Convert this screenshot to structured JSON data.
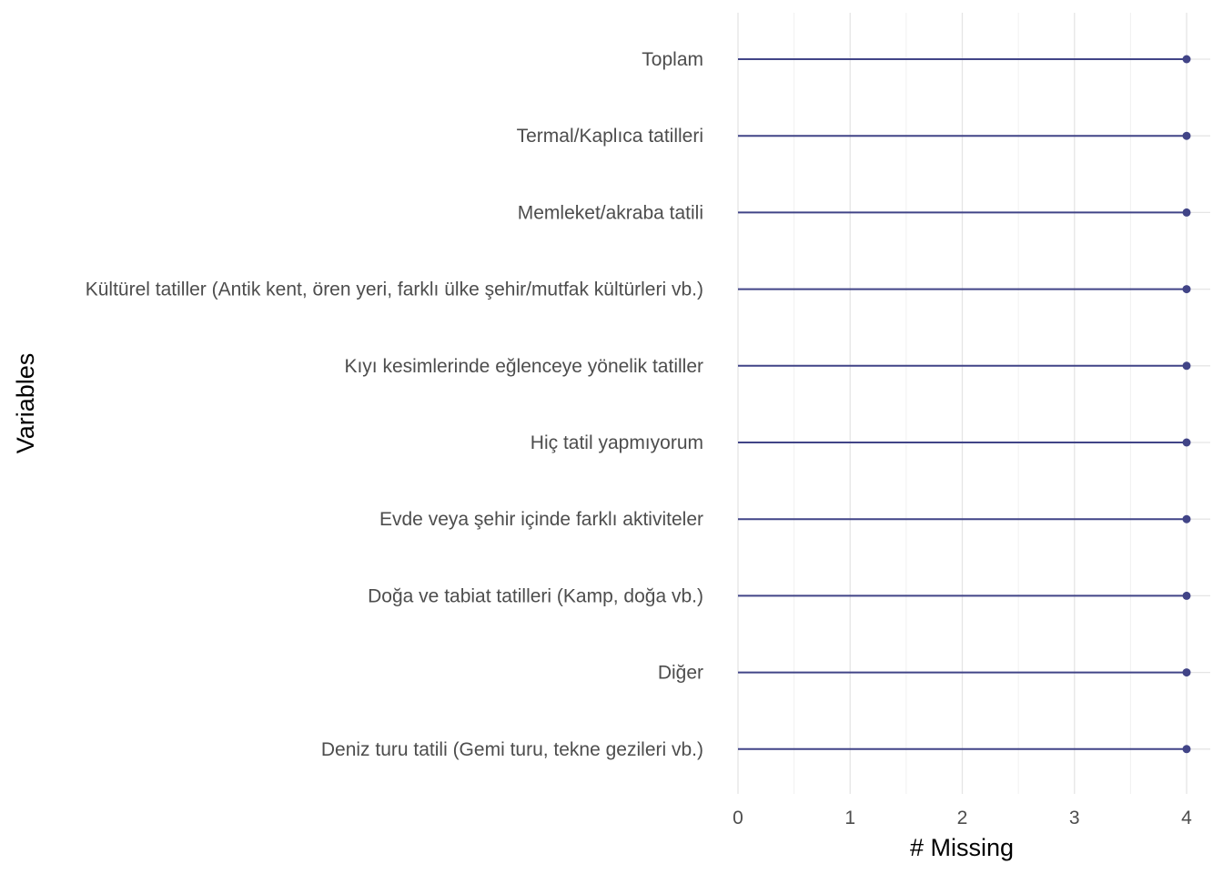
{
  "chart_data": {
    "type": "lollipop",
    "orientation": "horizontal",
    "title": "",
    "xlabel": "# Missing",
    "ylabel": "Variables",
    "xlim": [
      0,
      4
    ],
    "x_ticks": [
      "0",
      "1",
      "2",
      "3",
      "4"
    ],
    "grid": true,
    "legend": "none",
    "color": "#414487",
    "categories": [
      "Toplam",
      "Termal/Kaplıca tatilleri",
      "Memleket/akraba tatili",
      "Kültürel tatiller (Antik kent, ören yeri, farklı ülke şehir/mutfak kültürleri vb.)",
      "Kıyı kesimlerinde eğlenceye yönelik tatiller",
      "Hiç tatil yapmıyorum",
      "Evde veya şehir içinde farklı aktiviteler",
      "Doğa ve tabiat tatilleri (Kamp, doğa vb.)",
      "Diğer",
      "Deniz turu tatili (Gemi turu, tekne gezileri vb.)"
    ],
    "values": [
      4,
      4,
      4,
      4,
      4,
      4,
      4,
      4,
      4,
      4
    ]
  }
}
